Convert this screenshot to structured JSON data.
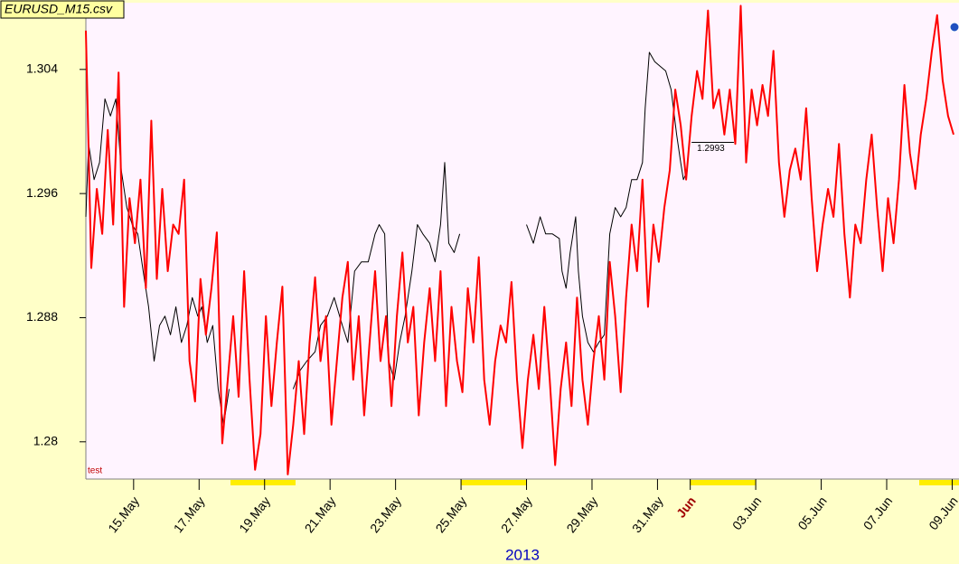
{
  "chart_data": {
    "type": "line",
    "title": "EURUSD_M15.csv",
    "note": "test",
    "xlabel": "2013",
    "xlim": [
      301,
      941
    ],
    "xticks": [
      {
        "value": 336,
        "label": "15.May"
      },
      {
        "value": 384,
        "label": "17.May"
      },
      {
        "value": 432,
        "label": "19.May"
      },
      {
        "value": 480,
        "label": "21.May"
      },
      {
        "value": 528,
        "label": "23.May"
      },
      {
        "value": 576,
        "label": "25.May"
      },
      {
        "value": 624,
        "label": "27.May"
      },
      {
        "value": 672,
        "label": "29.May"
      },
      {
        "value": 720,
        "label": "31.May"
      },
      {
        "value": 744,
        "label": "Jun"
      },
      {
        "value": 792,
        "label": "03.Jun"
      },
      {
        "value": 840,
        "label": "05.Jun"
      },
      {
        "value": 888,
        "label": "07.Jun"
      },
      {
        "value": 936,
        "label": "09.Jun"
      }
    ],
    "ylim": [
      1.2776,
      1.3083
    ],
    "yticks": [
      1.28,
      1.288,
      1.296,
      1.304
    ],
    "level_line": {
      "y": 1.2993,
      "x": [
        745,
        776
      ]
    },
    "series": [
      {
        "color": "#000000",
        "x": [
          301,
          303,
          307,
          311,
          315,
          319,
          323,
          327,
          331,
          335,
          339,
          343,
          347,
          351,
          355,
          359,
          363,
          367,
          371,
          375,
          379,
          383,
          386,
          390,
          394,
          398,
          402,
          406,
          430,
          453,
          458,
          463,
          469,
          473,
          478,
          483,
          489,
          493,
          498,
          503,
          508,
          513,
          516,
          520,
          523,
          527,
          531,
          535,
          540,
          544,
          548,
          553,
          557,
          561,
          564,
          567,
          571,
          575,
          600,
          624,
          629,
          634,
          638,
          643,
          648,
          650,
          653,
          656,
          660,
          662,
          665,
          669,
          673,
          677,
          681,
          685,
          689,
          693,
          697,
          701,
          705,
          709,
          711,
          714,
          718,
          722,
          726,
          730,
          734,
          737,
          739,
          742
        ],
        "values": [
          1.2945,
          1.2992,
          1.2969,
          1.298,
          1.3021,
          1.301,
          1.3021,
          1.2975,
          1.2951,
          1.294,
          1.2934,
          1.291,
          1.2887,
          1.2852,
          1.2875,
          1.2881,
          1.2869,
          1.2887,
          1.2864,
          1.2875,
          1.2893,
          1.2881,
          1.2887,
          1.2864,
          1.2875,
          1.2834,
          1.2811,
          1.2834,
          null,
          1.2834,
          1.2846,
          1.2852,
          1.2858,
          1.2875,
          1.2881,
          1.2893,
          1.2875,
          1.2864,
          1.291,
          1.2916,
          1.2916,
          1.2934,
          1.294,
          1.2934,
          1.2852,
          1.284,
          1.2864,
          1.2881,
          1.291,
          1.294,
          1.2934,
          1.2928,
          1.2916,
          1.294,
          1.298,
          1.2928,
          1.2922,
          1.2934,
          null,
          1.294,
          1.2928,
          1.2945,
          1.2934,
          1.2934,
          1.2931,
          1.291,
          1.2899,
          1.2922,
          1.2945,
          1.291,
          1.2881,
          1.2864,
          1.2858,
          1.2864,
          1.2869,
          1.2934,
          1.2951,
          1.2945,
          1.2951,
          1.2969,
          1.2969,
          1.298,
          1.3015,
          1.3051,
          1.3045,
          1.3042,
          1.3039,
          1.3027,
          1.2998,
          1.298,
          1.2969,
          1.2975
        ]
      },
      {
        "color": "#ff0000",
        "x": [
          301,
          305,
          309,
          313,
          317,
          321,
          325,
          329,
          333,
          337,
          341,
          345,
          349,
          353,
          357,
          361,
          365,
          369,
          373,
          377,
          381,
          385,
          389,
          393,
          397,
          401,
          405,
          409,
          413,
          417,
          421,
          425,
          429,
          433,
          437,
          441,
          445,
          449,
          453,
          457,
          461,
          465,
          469,
          473,
          477,
          481,
          485,
          489,
          493,
          497,
          501,
          505,
          509,
          513,
          517,
          521,
          525,
          529,
          533,
          537,
          541,
          545,
          549,
          553,
          557,
          561,
          565,
          569,
          573,
          577,
          581,
          585,
          589,
          593,
          597,
          601,
          605,
          609,
          613,
          617,
          621,
          625,
          629,
          633,
          637,
          641,
          645,
          649,
          653,
          657,
          661,
          665,
          669,
          673,
          677,
          681,
          685,
          689,
          693,
          697,
          701,
          705,
          709,
          713,
          717,
          721,
          725,
          729,
          733,
          737,
          741,
          745,
          749,
          753,
          757,
          761,
          765,
          769,
          773,
          777,
          781,
          785,
          789,
          793,
          797,
          801,
          805,
          809,
          813,
          817,
          821,
          825,
          829,
          833,
          837,
          841,
          845,
          849,
          853,
          857,
          861,
          865,
          869,
          873,
          877,
          881,
          885,
          889,
          893,
          897,
          901,
          905,
          909,
          913,
          917,
          921,
          925,
          929,
          933,
          937
        ],
        "values": [
          1.3065,
          1.2912,
          1.2963,
          1.2934,
          1.3001,
          1.294,
          1.3038,
          1.2887,
          1.2957,
          1.2928,
          1.2969,
          1.2899,
          1.3007,
          1.2905,
          1.2963,
          1.291,
          1.294,
          1.2934,
          1.2969,
          1.2852,
          1.2826,
          1.2905,
          1.2869,
          1.2899,
          1.2935,
          1.2799,
          1.284,
          1.2881,
          1.2829,
          1.291,
          1.284,
          1.2782,
          1.2805,
          1.2881,
          1.2823,
          1.2864,
          1.29,
          1.2779,
          1.2811,
          1.2852,
          1.2805,
          1.2864,
          1.2906,
          1.2852,
          1.2881,
          1.2811,
          1.2852,
          1.2893,
          1.2916,
          1.284,
          1.2881,
          1.2817,
          1.2864,
          1.291,
          1.2852,
          1.2881,
          1.2823,
          1.2881,
          1.2922,
          1.2864,
          1.2887,
          1.2817,
          1.2864,
          1.2899,
          1.2852,
          1.291,
          1.2823,
          1.2887,
          1.2852,
          1.2832,
          1.2899,
          1.2864,
          1.2919,
          1.284,
          1.2811,
          1.2852,
          1.2875,
          1.2864,
          1.2903,
          1.284,
          1.2796,
          1.284,
          1.2869,
          1.2834,
          1.2887,
          1.284,
          1.2785,
          1.2834,
          1.2864,
          1.2823,
          1.2893,
          1.284,
          1.2811,
          1.2852,
          1.2881,
          1.284,
          1.2916,
          1.2881,
          1.2832,
          1.2893,
          1.294,
          1.291,
          1.2969,
          1.2887,
          1.294,
          1.2916,
          1.2951,
          1.2975,
          1.3027,
          1.3004,
          1.2969,
          1.301,
          1.3039,
          1.3021,
          1.3078,
          1.3015,
          1.3027,
          1.2998,
          1.3027,
          1.2992,
          1.3081,
          1.298,
          1.3027,
          1.3004,
          1.303,
          1.301,
          1.3052,
          1.298,
          1.2945,
          1.2975,
          1.2989,
          1.2969,
          1.3015,
          1.2957,
          1.291,
          1.294,
          1.2963,
          1.2945,
          1.2992,
          1.2934,
          1.2893,
          1.294,
          1.2928,
          1.2969,
          1.2998,
          1.2951,
          1.291,
          1.2957,
          1.2928,
          1.2969,
          1.303,
          1.2986,
          1.2963,
          1.2998,
          1.3021,
          1.3051,
          1.3075,
          1.3033,
          1.301,
          1.2998
        ]
      }
    ]
  }
}
